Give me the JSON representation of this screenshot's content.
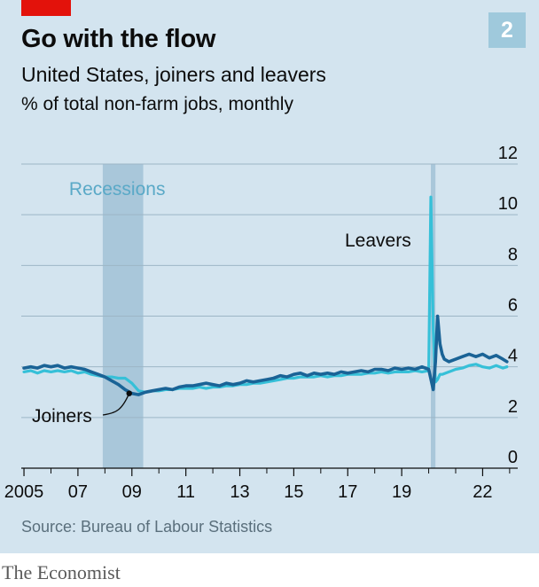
{
  "header": {
    "badge": "2"
  },
  "footer": {
    "source": "Source: Bureau of Labour Statistics",
    "publisher": "The Economist"
  },
  "colors": {
    "background": "#d3e4ef",
    "joiners": "#1a6396",
    "leavers": "#36c0d8",
    "recession": "#a9c7da",
    "accent_red": "#e3120b"
  },
  "chart_data": {
    "type": "line",
    "title": "Go with the flow",
    "subtitle": "United States, joiners and leavers",
    "units_label": "% of total non-farm jobs, monthly",
    "xlabel": "",
    "ylabel": "",
    "x_range": [
      2004.9,
      2023.3
    ],
    "ylim": [
      0,
      12
    ],
    "y_ticks": [
      0,
      2,
      4,
      6,
      8,
      10,
      12
    ],
    "y_tick_labels": [
      "0",
      "2",
      "4",
      "6",
      "8",
      "10",
      "12"
    ],
    "x_ticks": [
      2005,
      2007,
      2009,
      2011,
      2013,
      2015,
      2017,
      2019,
      2022
    ],
    "x_tick_labels": [
      "2005",
      "07",
      "09",
      "11",
      "13",
      "15",
      "17",
      "19",
      "22"
    ],
    "x_minor_ticks": [
      2006,
      2008,
      2010,
      2012,
      2014,
      2016,
      2018,
      2020,
      2021,
      2023
    ],
    "grid": true,
    "recessions": {
      "label": "Recessions",
      "periods": [
        [
          2007.92,
          2009.42
        ],
        [
          2020.08,
          2020.25
        ]
      ]
    },
    "series": [
      {
        "name": "Joiners",
        "x": [
          2005.0,
          2005.25,
          2005.5,
          2005.75,
          2006.0,
          2006.25,
          2006.5,
          2006.75,
          2007.0,
          2007.25,
          2007.5,
          2007.75,
          2008.0,
          2008.25,
          2008.5,
          2008.75,
          2009.0,
          2009.25,
          2009.5,
          2009.75,
          2010.0,
          2010.25,
          2010.5,
          2010.75,
          2011.0,
          2011.25,
          2011.5,
          2011.75,
          2012.0,
          2012.25,
          2012.5,
          2012.75,
          2013.0,
          2013.25,
          2013.5,
          2013.75,
          2014.0,
          2014.25,
          2014.5,
          2014.75,
          2015.0,
          2015.25,
          2015.5,
          2015.75,
          2016.0,
          2016.25,
          2016.5,
          2016.75,
          2017.0,
          2017.25,
          2017.5,
          2017.75,
          2018.0,
          2018.25,
          2018.5,
          2018.75,
          2019.0,
          2019.25,
          2019.5,
          2019.75,
          2020.0,
          2020.17,
          2020.25,
          2020.33,
          2020.42,
          2020.5,
          2020.58,
          2020.75,
          2021.0,
          2021.25,
          2021.5,
          2021.75,
          2022.0,
          2022.25,
          2022.5,
          2022.75,
          2022.9
        ],
        "values": [
          3.95,
          4.0,
          3.95,
          4.05,
          4.0,
          4.05,
          3.95,
          4.0,
          3.95,
          3.9,
          3.8,
          3.7,
          3.6,
          3.45,
          3.3,
          3.1,
          2.95,
          2.9,
          3.0,
          3.05,
          3.1,
          3.15,
          3.1,
          3.2,
          3.25,
          3.25,
          3.3,
          3.35,
          3.3,
          3.25,
          3.35,
          3.3,
          3.35,
          3.45,
          3.4,
          3.45,
          3.5,
          3.55,
          3.65,
          3.6,
          3.7,
          3.75,
          3.65,
          3.75,
          3.7,
          3.75,
          3.7,
          3.8,
          3.75,
          3.8,
          3.85,
          3.8,
          3.9,
          3.9,
          3.85,
          3.95,
          3.9,
          3.95,
          3.9,
          4.0,
          3.9,
          3.1,
          4.2,
          6.0,
          4.9,
          4.5,
          4.3,
          4.2,
          4.3,
          4.4,
          4.5,
          4.4,
          4.5,
          4.35,
          4.45,
          4.3,
          4.2
        ]
      },
      {
        "name": "Leavers",
        "x": [
          2005.0,
          2005.25,
          2005.5,
          2005.75,
          2006.0,
          2006.25,
          2006.5,
          2006.75,
          2007.0,
          2007.25,
          2007.5,
          2007.75,
          2008.0,
          2008.25,
          2008.5,
          2008.75,
          2009.0,
          2009.25,
          2009.5,
          2009.75,
          2010.0,
          2010.25,
          2010.5,
          2010.75,
          2011.0,
          2011.25,
          2011.5,
          2011.75,
          2012.0,
          2012.25,
          2012.5,
          2012.75,
          2013.0,
          2013.25,
          2013.5,
          2013.75,
          2014.0,
          2014.25,
          2014.5,
          2014.75,
          2015.0,
          2015.25,
          2015.5,
          2015.75,
          2016.0,
          2016.25,
          2016.5,
          2016.75,
          2017.0,
          2017.25,
          2017.5,
          2017.75,
          2018.0,
          2018.25,
          2018.5,
          2018.75,
          2019.0,
          2019.25,
          2019.5,
          2019.75,
          2020.0,
          2020.08,
          2020.17,
          2020.25,
          2020.33,
          2020.42,
          2020.5,
          2020.75,
          2021.0,
          2021.25,
          2021.5,
          2021.75,
          2022.0,
          2022.25,
          2022.5,
          2022.75,
          2022.9
        ],
        "values": [
          3.8,
          3.85,
          3.75,
          3.85,
          3.8,
          3.85,
          3.8,
          3.85,
          3.75,
          3.8,
          3.7,
          3.65,
          3.6,
          3.6,
          3.55,
          3.55,
          3.35,
          3.05,
          3.0,
          3.05,
          3.05,
          3.1,
          3.1,
          3.15,
          3.15,
          3.15,
          3.2,
          3.15,
          3.2,
          3.2,
          3.25,
          3.25,
          3.3,
          3.3,
          3.35,
          3.35,
          3.4,
          3.45,
          3.5,
          3.55,
          3.55,
          3.6,
          3.6,
          3.6,
          3.65,
          3.6,
          3.65,
          3.65,
          3.7,
          3.7,
          3.7,
          3.75,
          3.75,
          3.8,
          3.75,
          3.8,
          3.8,
          3.8,
          3.85,
          3.8,
          3.85,
          10.7,
          5.5,
          3.4,
          3.5,
          3.7,
          3.7,
          3.8,
          3.9,
          3.95,
          4.05,
          4.1,
          4.0,
          3.95,
          4.05,
          3.95,
          4.0
        ]
      }
    ],
    "annotations": [
      "Leavers",
      "Joiners"
    ]
  }
}
